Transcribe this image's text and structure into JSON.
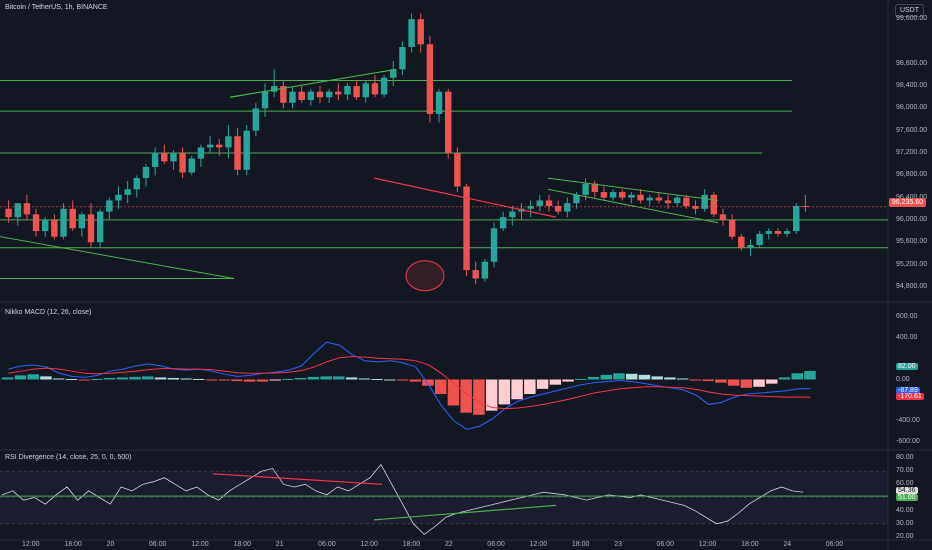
{
  "header": {
    "symbol_title": "Bitcoin / TetherUS, 1h, BINANCE",
    "currency": "USDT",
    "macd_title": "Nikko MACD (12, 26, close)",
    "rsi_title": "RSI Divergence (14, close, 25, 0, 0, 500)"
  },
  "colors": {
    "bg": "#131722",
    "grid": "#1e222d",
    "up": "#26a69a",
    "down": "#ef5350",
    "trendline": "#4caf50",
    "redline": "#f23645",
    "macd_line": "#2962ff",
    "signal_line": "#f23645",
    "rsi_line": "#d1d4dc"
  },
  "price_axis": {
    "ticks": [
      "99,600.00",
      "98,800.00",
      "98,400.00",
      "98,000.00",
      "97,600.00",
      "97,200.00",
      "96,800.00",
      "96,400.00",
      "96,000.00",
      "95,600.00",
      "95,200.00",
      "94,800.00"
    ],
    "last_price_label": "96,235.60"
  },
  "macd_axis": {
    "ticks": [
      "600.00",
      "400.00",
      "0.00",
      "-400.00",
      "-600.00"
    ],
    "labels": [
      "82.00",
      "-87.89",
      "-170.61"
    ]
  },
  "rsi_axis": {
    "ticks": [
      "80.00",
      "70.00",
      "60.00",
      "50.00",
      "40.00",
      "30.00",
      "20.00"
    ],
    "labels": [
      "54.36",
      "51.00"
    ]
  },
  "time_axis": [
    "12:00",
    "18:00",
    "20",
    "06:00",
    "12:00",
    "18:00",
    "21",
    "06:00",
    "12:00",
    "18:00",
    "22",
    "06:00",
    "12:00",
    "18:00",
    "23",
    "06:00",
    "12:00",
    "18:00",
    "24",
    "06:00"
  ],
  "chart_data": {
    "type": "candlestick",
    "y_range": [
      94600,
      99800
    ],
    "candles": [
      {
        "o": 96200,
        "h": 96350,
        "l": 95950,
        "c": 96050
      },
      {
        "o": 96050,
        "h": 96300,
        "l": 95900,
        "c": 96300
      },
      {
        "o": 96300,
        "h": 96450,
        "l": 96000,
        "c": 96100
      },
      {
        "o": 96100,
        "h": 96200,
        "l": 95700,
        "c": 95800
      },
      {
        "o": 95800,
        "h": 96050,
        "l": 95700,
        "c": 96000
      },
      {
        "o": 96000,
        "h": 96100,
        "l": 95650,
        "c": 95700
      },
      {
        "o": 95700,
        "h": 96300,
        "l": 95650,
        "c": 96200
      },
      {
        "o": 96200,
        "h": 96350,
        "l": 95800,
        "c": 95850
      },
      {
        "o": 95850,
        "h": 96150,
        "l": 95700,
        "c": 96100
      },
      {
        "o": 96100,
        "h": 96300,
        "l": 95500,
        "c": 95600
      },
      {
        "o": 95600,
        "h": 96200,
        "l": 95500,
        "c": 96150
      },
      {
        "o": 96150,
        "h": 96400,
        "l": 96000,
        "c": 96350
      },
      {
        "o": 96350,
        "h": 96600,
        "l": 96200,
        "c": 96450
      },
      {
        "o": 96450,
        "h": 96700,
        "l": 96300,
        "c": 96550
      },
      {
        "o": 96550,
        "h": 96800,
        "l": 96400,
        "c": 96750
      },
      {
        "o": 96750,
        "h": 97000,
        "l": 96600,
        "c": 96950
      },
      {
        "o": 96950,
        "h": 97300,
        "l": 96800,
        "c": 97200
      },
      {
        "o": 97200,
        "h": 97350,
        "l": 97000,
        "c": 97050
      },
      {
        "o": 97050,
        "h": 97250,
        "l": 96900,
        "c": 97200
      },
      {
        "o": 97200,
        "h": 97300,
        "l": 96750,
        "c": 96850
      },
      {
        "o": 96850,
        "h": 97150,
        "l": 96800,
        "c": 97100
      },
      {
        "o": 97100,
        "h": 97350,
        "l": 96950,
        "c": 97300
      },
      {
        "o": 97300,
        "h": 97500,
        "l": 97200,
        "c": 97350
      },
      {
        "o": 97350,
        "h": 97450,
        "l": 97150,
        "c": 97300
      },
      {
        "o": 97300,
        "h": 97700,
        "l": 97100,
        "c": 97500
      },
      {
        "o": 97500,
        "h": 97650,
        "l": 96800,
        "c": 96900
      },
      {
        "o": 96900,
        "h": 97700,
        "l": 96800,
        "c": 97600
      },
      {
        "o": 97600,
        "h": 98100,
        "l": 97500,
        "c": 98000
      },
      {
        "o": 98000,
        "h": 98450,
        "l": 97850,
        "c": 98300
      },
      {
        "o": 98300,
        "h": 98700,
        "l": 98200,
        "c": 98400
      },
      {
        "o": 98400,
        "h": 98500,
        "l": 98000,
        "c": 98100
      },
      {
        "o": 98100,
        "h": 98400,
        "l": 98000,
        "c": 98300
      },
      {
        "o": 98300,
        "h": 98400,
        "l": 98100,
        "c": 98150
      },
      {
        "o": 98150,
        "h": 98350,
        "l": 98050,
        "c": 98300
      },
      {
        "o": 98300,
        "h": 98400,
        "l": 98100,
        "c": 98200
      },
      {
        "o": 98200,
        "h": 98350,
        "l": 98100,
        "c": 98300
      },
      {
        "o": 98300,
        "h": 98450,
        "l": 98150,
        "c": 98250
      },
      {
        "o": 98250,
        "h": 98450,
        "l": 98150,
        "c": 98400
      },
      {
        "o": 98400,
        "h": 98500,
        "l": 98150,
        "c": 98200
      },
      {
        "o": 98200,
        "h": 98500,
        "l": 98100,
        "c": 98450
      },
      {
        "o": 98450,
        "h": 98600,
        "l": 98200,
        "c": 98250
      },
      {
        "o": 98250,
        "h": 98600,
        "l": 98200,
        "c": 98550
      },
      {
        "o": 98550,
        "h": 98850,
        "l": 98400,
        "c": 98700
      },
      {
        "o": 98700,
        "h": 99200,
        "l": 98600,
        "c": 99100
      },
      {
        "o": 99100,
        "h": 99700,
        "l": 99000,
        "c": 99600
      },
      {
        "o": 99600,
        "h": 99700,
        "l": 99000,
        "c": 99150
      },
      {
        "o": 99150,
        "h": 99300,
        "l": 97750,
        "c": 97900
      },
      {
        "o": 97900,
        "h": 98350,
        "l": 97750,
        "c": 98300
      },
      {
        "o": 98300,
        "h": 98350,
        "l": 97100,
        "c": 97200
      },
      {
        "o": 97200,
        "h": 97300,
        "l": 96500,
        "c": 96600
      },
      {
        "o": 96600,
        "h": 96650,
        "l": 95000,
        "c": 95100
      },
      {
        "o": 95100,
        "h": 95250,
        "l": 94850,
        "c": 94950
      },
      {
        "o": 94950,
        "h": 95300,
        "l": 94900,
        "c": 95250
      },
      {
        "o": 95250,
        "h": 95950,
        "l": 95150,
        "c": 95850
      },
      {
        "o": 95850,
        "h": 96150,
        "l": 95800,
        "c": 96050
      },
      {
        "o": 96050,
        "h": 96250,
        "l": 95900,
        "c": 96150
      },
      {
        "o": 96150,
        "h": 96300,
        "l": 96000,
        "c": 96200
      },
      {
        "o": 96200,
        "h": 96350,
        "l": 96050,
        "c": 96250
      },
      {
        "o": 96250,
        "h": 96450,
        "l": 96150,
        "c": 96350
      },
      {
        "o": 96350,
        "h": 96450,
        "l": 96150,
        "c": 96250
      },
      {
        "o": 96250,
        "h": 96350,
        "l": 96100,
        "c": 96150
      },
      {
        "o": 96150,
        "h": 96400,
        "l": 96050,
        "c": 96300
      },
      {
        "o": 96300,
        "h": 96500,
        "l": 96200,
        "c": 96450
      },
      {
        "o": 96450,
        "h": 96750,
        "l": 96350,
        "c": 96650
      },
      {
        "o": 96650,
        "h": 96700,
        "l": 96400,
        "c": 96500
      },
      {
        "o": 96500,
        "h": 96600,
        "l": 96350,
        "c": 96400
      },
      {
        "o": 96400,
        "h": 96550,
        "l": 96350,
        "c": 96500
      },
      {
        "o": 96500,
        "h": 96550,
        "l": 96350,
        "c": 96400
      },
      {
        "o": 96400,
        "h": 96500,
        "l": 96300,
        "c": 96450
      },
      {
        "o": 96450,
        "h": 96550,
        "l": 96300,
        "c": 96350
      },
      {
        "o": 96350,
        "h": 96450,
        "l": 96250,
        "c": 96400
      },
      {
        "o": 96400,
        "h": 96500,
        "l": 96300,
        "c": 96350
      },
      {
        "o": 96350,
        "h": 96450,
        "l": 96200,
        "c": 96300
      },
      {
        "o": 96300,
        "h": 96450,
        "l": 96250,
        "c": 96400
      },
      {
        "o": 96400,
        "h": 96450,
        "l": 96200,
        "c": 96250
      },
      {
        "o": 96250,
        "h": 96350,
        "l": 96100,
        "c": 96200
      },
      {
        "o": 96200,
        "h": 96550,
        "l": 96150,
        "c": 96450
      },
      {
        "o": 96450,
        "h": 96500,
        "l": 96050,
        "c": 96100
      },
      {
        "o": 96100,
        "h": 96200,
        "l": 95900,
        "c": 96000
      },
      {
        "o": 96000,
        "h": 96100,
        "l": 95650,
        "c": 95700
      },
      {
        "o": 95700,
        "h": 95750,
        "l": 95450,
        "c": 95500
      },
      {
        "o": 95500,
        "h": 95650,
        "l": 95350,
        "c": 95550
      },
      {
        "o": 95550,
        "h": 95800,
        "l": 95500,
        "c": 95750
      },
      {
        "o": 95750,
        "h": 95850,
        "l": 95650,
        "c": 95800
      },
      {
        "o": 95800,
        "h": 95850,
        "l": 95700,
        "c": 95750
      },
      {
        "o": 95750,
        "h": 95850,
        "l": 95700,
        "c": 95800
      },
      {
        "o": 95800,
        "h": 96300,
        "l": 95750,
        "c": 96250
      },
      {
        "o": 96250,
        "h": 96450,
        "l": 96150,
        "c": 96235
      }
    ],
    "macd": {
      "histogram": [
        20,
        40,
        50,
        30,
        10,
        5,
        -5,
        5,
        15,
        20,
        25,
        30,
        20,
        15,
        10,
        5,
        -5,
        -10,
        -15,
        -20,
        -20,
        -10,
        5,
        15,
        25,
        30,
        30,
        20,
        10,
        5,
        0,
        -5,
        -20,
        -60,
        -140,
        -250,
        -320,
        -340,
        -300,
        -240,
        -190,
        -140,
        -90,
        -50,
        -20,
        5,
        25,
        45,
        60,
        55,
        45,
        30,
        20,
        10,
        -5,
        -15,
        -30,
        -60,
        -80,
        -70,
        -40,
        20,
        60,
        82
      ],
      "macd_line": [
        100,
        130,
        140,
        120,
        60,
        30,
        20,
        40,
        80,
        100,
        130,
        150,
        130,
        100,
        90,
        100,
        80,
        50,
        30,
        40,
        60,
        70,
        90,
        130,
        250,
        360,
        330,
        240,
        180,
        170,
        180,
        160,
        120,
        -50,
        -250,
        -400,
        -480,
        -450,
        -380,
        -280,
        -210,
        -170,
        -140,
        -110,
        -80,
        -50,
        -30,
        -20,
        -10,
        -20,
        -40,
        -60,
        -80,
        -100,
        -150,
        -240,
        -220,
        -170,
        -140,
        -130,
        -120,
        -110,
        -90,
        -88
      ],
      "signal_line": [
        60,
        80,
        100,
        110,
        100,
        80,
        60,
        55,
        60,
        70,
        80,
        95,
        105,
        105,
        100,
        100,
        95,
        80,
        65,
        60,
        60,
        63,
        70,
        85,
        120,
        170,
        210,
        220,
        215,
        205,
        200,
        195,
        180,
        140,
        60,
        -40,
        -140,
        -220,
        -270,
        -280,
        -275,
        -260,
        -240,
        -215,
        -190,
        -160,
        -130,
        -110,
        -90,
        -80,
        -70,
        -70,
        -75,
        -80,
        -95,
        -120,
        -140,
        -150,
        -155,
        -160,
        -165,
        -170,
        -168,
        -171
      ],
      "y_range": [
        -650,
        650
      ]
    },
    "rsi": {
      "values": [
        52,
        55,
        48,
        50,
        45,
        52,
        58,
        48,
        55,
        50,
        45,
        58,
        55,
        60,
        62,
        65,
        60,
        55,
        58,
        52,
        48,
        55,
        60,
        65,
        70,
        72,
        60,
        58,
        60,
        55,
        52,
        58,
        55,
        60,
        65,
        75,
        60,
        45,
        30,
        22,
        28,
        35,
        38,
        40,
        42,
        44,
        46,
        48,
        50,
        52,
        54,
        53,
        52,
        50,
        48,
        50,
        52,
        51,
        50,
        52,
        50,
        48,
        46,
        44,
        40,
        35,
        30,
        32,
        38,
        45,
        50,
        55,
        58,
        55,
        54
      ],
      "y_range": [
        20,
        80
      ],
      "bands": [
        30,
        50,
        70
      ]
    }
  }
}
